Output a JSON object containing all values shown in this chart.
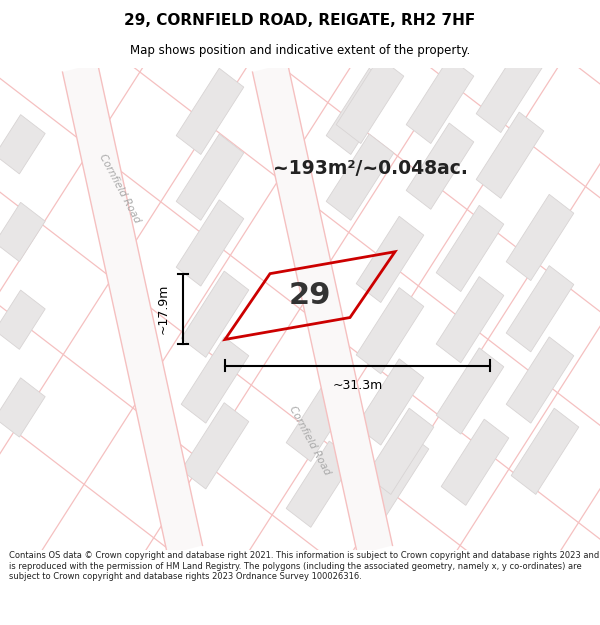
{
  "title": "29, CORNFIELD ROAD, REIGATE, RH2 7HF",
  "subtitle": "Map shows position and indicative extent of the property.",
  "area_text": "~193m²/~0.048ac.",
  "property_number": "29",
  "dim_width": "~31.3m",
  "dim_height": "~17.9m",
  "footer": "Contains OS data © Crown copyright and database right 2021. This information is subject to Crown copyright and database rights 2023 and is reproduced with the permission of HM Land Registry. The polygons (including the associated geometry, namely x, y co-ordinates) are subject to Crown copyright and database rights 2023 Ordnance Survey 100026316.",
  "bg_color": "#ffffff",
  "map_bg": "#ffffff",
  "road_line_color": "#f5c0c0",
  "building_color": "#e8e6e6",
  "building_edge_color": "#d8d4d4",
  "road_band_color": "#f9f7f7",
  "road_center_color": "#f0e8e8",
  "property_edge": "#cc0000",
  "title_color": "#000000",
  "footer_color": "#222222",
  "road_label_color": "#aaaaaa",
  "dim_color": "#000000",
  "area_text_color": "#222222"
}
